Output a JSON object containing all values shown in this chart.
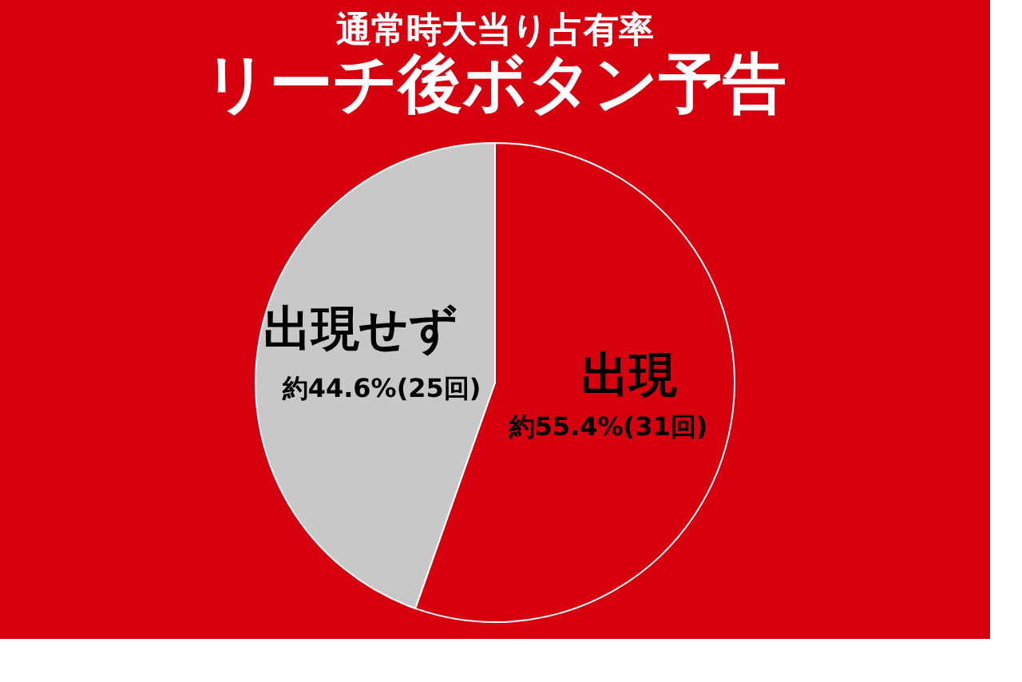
{
  "chart_data": {
    "type": "pie",
    "title": "通常時大当り占有率",
    "subtitle": "リーチ後ボタン予告",
    "categories": [
      "出現",
      "出現せず"
    ],
    "values": [
      55.4,
      44.6
    ],
    "colors": [
      "#d7000f",
      "#c8c8c8"
    ],
    "value_labels": [
      "約55.4%(31回)",
      "約44.6%(25回)"
    ]
  }
}
